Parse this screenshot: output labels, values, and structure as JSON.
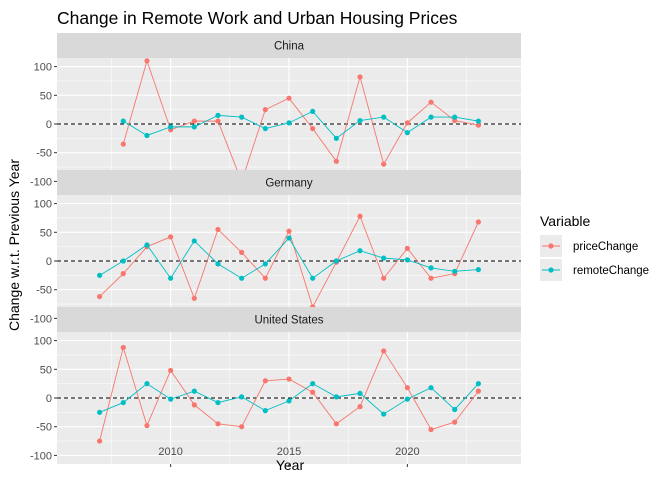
{
  "chart_data": {
    "type": "line",
    "title": "Change in Remote Work and Urban Housing Prices",
    "xlabel": "Year",
    "ylabel": "Change w.r.t. Previous Year",
    "xlim": [
      2005.2,
      2024.8
    ],
    "ylim": [
      -115,
      115
    ],
    "x_ticks": [
      2010,
      2015,
      2020
    ],
    "y_ticks": [
      -100,
      -50,
      0,
      50,
      100
    ],
    "x_tick_labels": [
      "2010",
      "2015",
      "2020"
    ],
    "y_tick_labels": [
      "-100",
      "-50",
      "0",
      "50",
      "100"
    ],
    "reference_line": 0,
    "grid": true,
    "legend": {
      "title": "Variable",
      "position": "right",
      "entries": [
        "priceChange",
        "remoteChange"
      ]
    },
    "colors": {
      "priceChange": "#F8766D",
      "remoteChange": "#00BFC4",
      "panel_bg": "#EBEBEB",
      "strip_bg": "#D9D9D9",
      "grid": "#FFFFFF"
    },
    "panels": [
      {
        "label": "China",
        "series": [
          {
            "name": "priceChange",
            "x": [
              2008,
              2009,
              2010,
              2011,
              2012,
              2013,
              2014,
              2015,
              2016,
              2017,
              2018,
              2019,
              2020,
              2021,
              2022,
              2023
            ],
            "values": [
              -35,
              110,
              -10,
              5,
              5,
              -100,
              25,
              45,
              -8,
              -65,
              82,
              -70,
              2,
              38,
              6,
              -2
            ]
          },
          {
            "name": "remoteChange",
            "x": [
              2008,
              2009,
              2010,
              2011,
              2012,
              2013,
              2014,
              2015,
              2016,
              2017,
              2018,
              2019,
              2020,
              2021,
              2022,
              2023
            ],
            "values": [
              5,
              -20,
              -5,
              -5,
              15,
              12,
              -8,
              2,
              22,
              -25,
              6,
              12,
              -15,
              12,
              12,
              5
            ]
          }
        ]
      },
      {
        "label": "Germany",
        "series": [
          {
            "name": "priceChange",
            "x": [
              2007,
              2008,
              2009,
              2010,
              2011,
              2012,
              2013,
              2014,
              2015,
              2016,
              2017,
              2018,
              2019,
              2020,
              2021,
              2022,
              2023
            ],
            "values": [
              -62,
              -22,
              25,
              42,
              -65,
              55,
              15,
              -30,
              52,
              -80,
              -2,
              78,
              -30,
              22,
              -30,
              -22,
              68
            ]
          },
          {
            "name": "remoteChange",
            "x": [
              2007,
              2008,
              2009,
              2010,
              2011,
              2012,
              2013,
              2014,
              2015,
              2016,
              2017,
              2018,
              2019,
              2020,
              2021,
              2022,
              2023
            ],
            "values": [
              -25,
              0,
              28,
              -30,
              35,
              -5,
              -30,
              -5,
              40,
              -30,
              0,
              18,
              5,
              2,
              -12,
              -18,
              -15
            ]
          }
        ]
      },
      {
        "label": "United States",
        "series": [
          {
            "name": "priceChange",
            "x": [
              2007,
              2008,
              2009,
              2010,
              2011,
              2012,
              2013,
              2014,
              2015,
              2016,
              2017,
              2018,
              2019,
              2020,
              2021,
              2022,
              2023
            ],
            "values": [
              -75,
              88,
              -48,
              48,
              -12,
              -45,
              -50,
              30,
              33,
              10,
              -45,
              -15,
              82,
              18,
              -55,
              -42,
              12
            ]
          },
          {
            "name": "remoteChange",
            "x": [
              2007,
              2008,
              2009,
              2010,
              2011,
              2012,
              2013,
              2014,
              2015,
              2016,
              2017,
              2018,
              2019,
              2020,
              2021,
              2022,
              2023
            ],
            "values": [
              -25,
              -8,
              25,
              -2,
              12,
              -8,
              2,
              -22,
              -5,
              25,
              2,
              8,
              -28,
              -2,
              18,
              -20,
              25
            ]
          }
        ]
      }
    ]
  }
}
